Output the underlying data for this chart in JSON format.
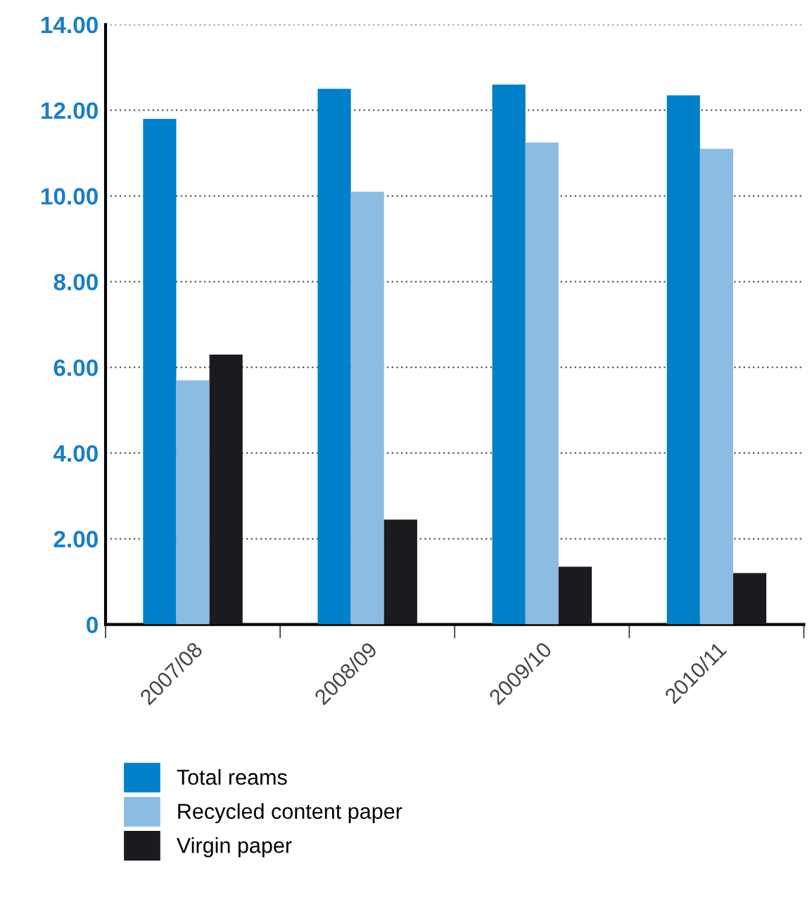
{
  "chart_data": {
    "type": "bar",
    "categories": [
      "2007/08",
      "2008/09",
      "2009/10",
      "2010/11"
    ],
    "series": [
      {
        "name": "Total reams",
        "color": "#0080c8",
        "values": [
          11.8,
          12.5,
          12.6,
          12.35
        ]
      },
      {
        "name": "Recycled content paper",
        "color": "#8bbce3",
        "values": [
          5.7,
          10.1,
          11.25,
          11.1
        ]
      },
      {
        "name": "Virgin paper",
        "color": "#1c1a1f",
        "values": [
          6.3,
          2.45,
          1.35,
          1.2
        ]
      }
    ],
    "ylim": [
      0,
      14
    ],
    "yticks": [
      {
        "value": 0,
        "label": "0"
      },
      {
        "value": 2,
        "label": "2.00"
      },
      {
        "value": 4,
        "label": "4.00"
      },
      {
        "value": 6,
        "label": "6.00"
      },
      {
        "value": 8,
        "label": "8.00"
      },
      {
        "value": 10,
        "label": "10.00"
      },
      {
        "value": 12,
        "label": "12.00"
      },
      {
        "value": 14,
        "label": "14.00"
      }
    ],
    "grid": "y",
    "legend": "bottom left"
  }
}
